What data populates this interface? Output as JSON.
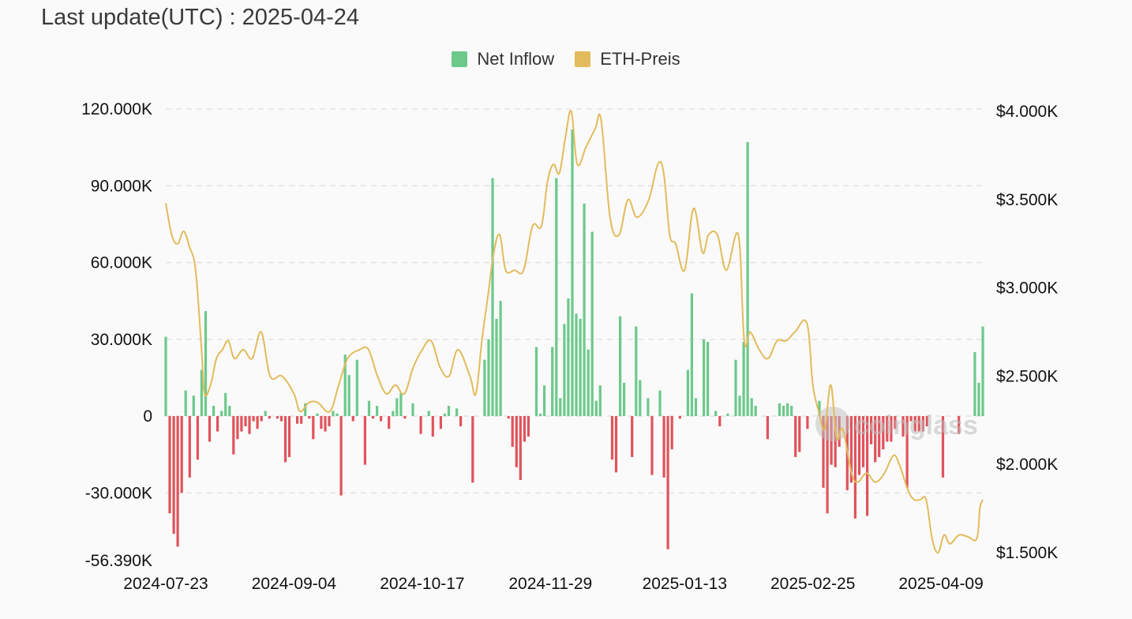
{
  "header": {
    "title": "Last update(UTC) : 2025-04-24"
  },
  "legend": {
    "items": [
      {
        "label": "Net Inflow",
        "color": "#6cc98a"
      },
      {
        "label": "ETH-Preis",
        "color": "#e2bb5c"
      }
    ]
  },
  "watermark": {
    "text": "coinglass"
  },
  "colors": {
    "positive": "#6cc98a",
    "negative": "#e0535b",
    "price_line": "#e2bb5c",
    "grid": "#e3e3e3"
  },
  "chart_data": {
    "type": "bar+line",
    "title": "",
    "xlabel": "",
    "ylabel": "",
    "x_ticks": [
      "2024-07-23",
      "2024-09-04",
      "2024-10-17",
      "2024-11-29",
      "2025-01-13",
      "2025-02-25",
      "2025-04-09"
    ],
    "y_left_ticks": [
      "120.000K",
      "90.000K",
      "60.000K",
      "30.000K",
      "0",
      "-30.000K",
      "-56.390K"
    ],
    "y_left_tick_values": [
      120000,
      90000,
      60000,
      30000,
      0,
      -30000,
      -56390
    ],
    "y_right_ticks": [
      "$4.000K",
      "$3.500K",
      "$3.000K",
      "$2.500K",
      "$2.000K",
      "$1.500K"
    ],
    "y_right_tick_values": [
      4000,
      3500,
      3000,
      2500,
      2000,
      1500
    ],
    "y_left_range": [
      -56390,
      120000
    ],
    "y_right_range": [
      1500,
      4000
    ],
    "x_range": [
      "2024-07-23",
      "2025-04-23"
    ],
    "grid": "horizontal dashed",
    "legend_position": "top-center",
    "series": [
      {
        "name": "Net Inflow",
        "type": "bar",
        "start_date": "2024-07-23",
        "values": [
          31000,
          -38000,
          -46000,
          -51000,
          -30000,
          10000,
          -24000,
          8000,
          -17000,
          18000,
          41000,
          -10000,
          4000,
          -6000,
          2000,
          9000,
          4000,
          -15000,
          -9000,
          -6000,
          -4000,
          -7000,
          -2000,
          -5000,
          -2000,
          2000,
          -1000,
          0,
          -1000,
          -2000,
          -18000,
          -16000,
          0,
          -3000,
          -3000,
          5000,
          -1000,
          -9000,
          1000,
          -5000,
          -6000,
          -4000,
          2000,
          1000,
          -31000,
          24000,
          16000,
          -2000,
          22000,
          0,
          -19000,
          6000,
          -1000,
          4000,
          -2000,
          0,
          -5000,
          2000,
          7000,
          9000,
          -1000,
          0,
          5000,
          0,
          -7000,
          0,
          2000,
          -8000,
          0,
          -5000,
          1000,
          4000,
          0,
          3000,
          -4000,
          0,
          0,
          -26000,
          0,
          0,
          22000,
          30000,
          93000,
          38000,
          45000,
          0,
          -1000,
          -12000,
          -20000,
          -25000,
          -10000,
          -8000,
          0,
          27000,
          1000,
          12000,
          0,
          27000,
          93000,
          7000,
          36000,
          46000,
          112000,
          40000,
          38000,
          83000,
          26000,
          72000,
          6000,
          12000,
          0,
          0,
          -17000,
          -22000,
          39000,
          13000,
          0,
          -16000,
          35000,
          14000,
          0,
          7000,
          -23000,
          0,
          10000,
          -24000,
          -52000,
          -13000,
          0,
          -1000,
          0,
          18000,
          48000,
          7000,
          0,
          30000,
          29000,
          0,
          2000,
          -4000,
          0,
          1000,
          0,
          22000,
          8000,
          29000,
          107000,
          7000,
          4000,
          0,
          0,
          -9000,
          0,
          0,
          5000,
          4000,
          5000,
          4000,
          -16000,
          -14000,
          0,
          -5000,
          0,
          0,
          6000,
          -28000,
          -38000,
          -19000,
          -20000,
          -12000,
          0,
          -29000,
          -26000,
          -40000,
          -23000,
          -20000,
          -39000,
          -11000,
          -18000,
          -16000,
          -13000,
          -10000,
          -10000,
          -5000,
          0,
          -8000,
          -28000,
          -2000,
          -6000,
          -6000,
          -6000,
          -4000,
          0,
          0,
          0,
          -24000,
          0,
          0,
          0,
          -7000,
          0,
          0,
          0,
          25000,
          13000,
          35000
        ],
        "color": "positive/negative"
      },
      {
        "name": "ETH-Preis",
        "type": "line",
        "points": [
          [
            "2024-07-23",
            3480
          ],
          [
            "2024-07-25",
            3300
          ],
          [
            "2024-07-27",
            3250
          ],
          [
            "2024-07-29",
            3320
          ],
          [
            "2024-07-31",
            3230
          ],
          [
            "2024-08-02",
            3100
          ],
          [
            "2024-08-04",
            2650
          ],
          [
            "2024-08-05",
            2400
          ],
          [
            "2024-08-07",
            2450
          ],
          [
            "2024-08-09",
            2600
          ],
          [
            "2024-08-11",
            2650
          ],
          [
            "2024-08-13",
            2700
          ],
          [
            "2024-08-15",
            2600
          ],
          [
            "2024-08-18",
            2650
          ],
          [
            "2024-08-21",
            2600
          ],
          [
            "2024-08-24",
            2750
          ],
          [
            "2024-08-27",
            2500
          ],
          [
            "2024-08-31",
            2500
          ],
          [
            "2024-09-04",
            2400
          ],
          [
            "2024-09-06",
            2300
          ],
          [
            "2024-09-09",
            2350
          ],
          [
            "2024-09-12",
            2350
          ],
          [
            "2024-09-16",
            2300
          ],
          [
            "2024-09-19",
            2450
          ],
          [
            "2024-09-22",
            2600
          ],
          [
            "2024-09-26",
            2650
          ],
          [
            "2024-09-29",
            2650
          ],
          [
            "2024-10-02",
            2500
          ],
          [
            "2024-10-05",
            2400
          ],
          [
            "2024-10-08",
            2450
          ],
          [
            "2024-10-11",
            2400
          ],
          [
            "2024-10-14",
            2550
          ],
          [
            "2024-10-17",
            2650
          ],
          [
            "2024-10-20",
            2700
          ],
          [
            "2024-10-23",
            2550
          ],
          [
            "2024-10-26",
            2500
          ],
          [
            "2024-10-29",
            2650
          ],
          [
            "2024-11-02",
            2500
          ],
          [
            "2024-11-04",
            2400
          ],
          [
            "2024-11-06",
            2700
          ],
          [
            "2024-11-08",
            2950
          ],
          [
            "2024-11-10",
            3200
          ],
          [
            "2024-11-12",
            3300
          ],
          [
            "2024-11-14",
            3100
          ],
          [
            "2024-11-17",
            3100
          ],
          [
            "2024-11-20",
            3100
          ],
          [
            "2024-11-23",
            3350
          ],
          [
            "2024-11-26",
            3350
          ],
          [
            "2024-11-28",
            3600
          ],
          [
            "2024-11-30",
            3700
          ],
          [
            "2024-12-02",
            3650
          ],
          [
            "2024-12-04",
            3850
          ],
          [
            "2024-12-06",
            4000
          ],
          [
            "2024-12-08",
            3700
          ],
          [
            "2024-12-11",
            3800
          ],
          [
            "2024-12-14",
            3900
          ],
          [
            "2024-12-16",
            3950
          ],
          [
            "2024-12-19",
            3400
          ],
          [
            "2024-12-22",
            3300
          ],
          [
            "2024-12-25",
            3500
          ],
          [
            "2024-12-28",
            3400
          ],
          [
            "2025-01-01",
            3500
          ],
          [
            "2025-01-04",
            3700
          ],
          [
            "2025-01-06",
            3650
          ],
          [
            "2025-01-08",
            3300
          ],
          [
            "2025-01-10",
            3250
          ],
          [
            "2025-01-13",
            3100
          ],
          [
            "2025-01-16",
            3450
          ],
          [
            "2025-01-19",
            3200
          ],
          [
            "2025-01-21",
            3300
          ],
          [
            "2025-01-24",
            3300
          ],
          [
            "2025-01-27",
            3100
          ],
          [
            "2025-01-31",
            3300
          ],
          [
            "2025-02-02",
            2700
          ],
          [
            "2025-02-04",
            2750
          ],
          [
            "2025-02-07",
            2650
          ],
          [
            "2025-02-10",
            2600
          ],
          [
            "2025-02-13",
            2700
          ],
          [
            "2025-02-16",
            2700
          ],
          [
            "2025-02-19",
            2750
          ],
          [
            "2025-02-23",
            2800
          ],
          [
            "2025-02-25",
            2450
          ],
          [
            "2025-02-27",
            2300
          ],
          [
            "2025-03-01",
            2200
          ],
          [
            "2025-03-03",
            2450
          ],
          [
            "2025-03-05",
            2150
          ],
          [
            "2025-03-07",
            2200
          ],
          [
            "2025-03-10",
            1950
          ],
          [
            "2025-03-12",
            1900
          ],
          [
            "2025-03-15",
            1950
          ],
          [
            "2025-03-18",
            1900
          ],
          [
            "2025-03-21",
            1950
          ],
          [
            "2025-03-24",
            2050
          ],
          [
            "2025-03-26",
            2000
          ],
          [
            "2025-03-29",
            1850
          ],
          [
            "2025-03-31",
            1800
          ],
          [
            "2025-04-02",
            1800
          ],
          [
            "2025-04-04",
            1800
          ],
          [
            "2025-04-06",
            1580
          ],
          [
            "2025-04-08",
            1500
          ],
          [
            "2025-04-10",
            1600
          ],
          [
            "2025-04-12",
            1550
          ],
          [
            "2025-04-15",
            1600
          ],
          [
            "2025-04-18",
            1590
          ],
          [
            "2025-04-21",
            1580
          ],
          [
            "2025-04-22",
            1750
          ],
          [
            "2025-04-23",
            1800
          ]
        ],
        "color": "#e2bb5c"
      }
    ]
  }
}
